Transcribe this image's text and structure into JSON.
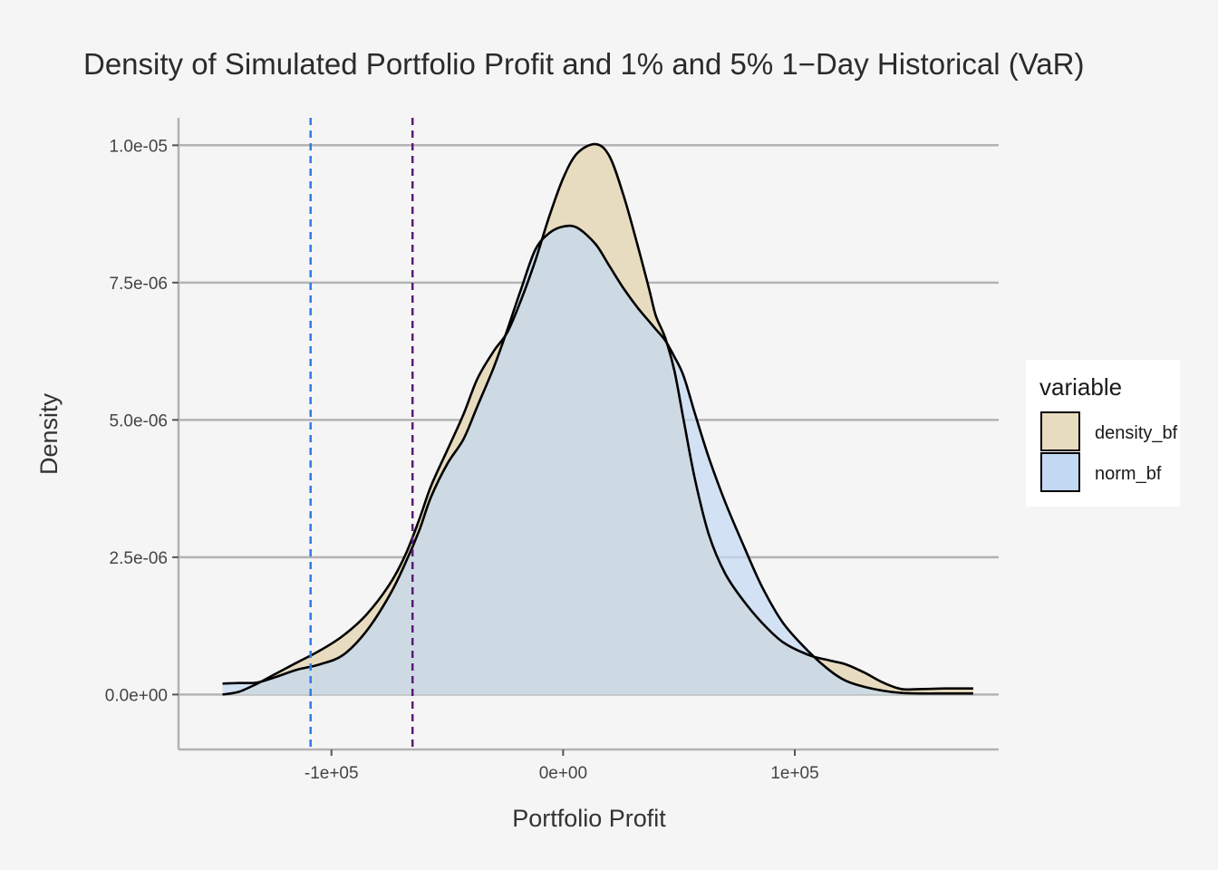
{
  "chart_data": {
    "type": "area",
    "title": "Density of Simulated Portfolio Profit and 1% and 5% 1−Day Historical (VaR)",
    "xlabel": "Portfolio Profit",
    "ylabel": "Density",
    "xlim": [
      -166000,
      188000
    ],
    "ylim": [
      -1e-06,
      1.05e-05
    ],
    "grid": "horizontal-major",
    "x_ticks": [
      {
        "value": -100000,
        "label": "-1e+05"
      },
      {
        "value": 0,
        "label": "0e+00"
      },
      {
        "value": 100000,
        "label": "1e+05"
      }
    ],
    "y_ticks": [
      {
        "value": 0,
        "label": "0.0e+00"
      },
      {
        "value": 2.5e-06,
        "label": "2.5e-06"
      },
      {
        "value": 5e-06,
        "label": "5.0e-06"
      },
      {
        "value": 7.5e-06,
        "label": "7.5e-06"
      },
      {
        "value": 1e-05,
        "label": "1.0e-05"
      }
    ],
    "series": [
      {
        "name": "density_bf",
        "fill": "#e8dcc0",
        "points": [
          [
            -147000,
            0.0
          ],
          [
            -140000,
            5e-08
          ],
          [
            -132000,
            2e-07
          ],
          [
            -124000,
            3.8e-07
          ],
          [
            -115000,
            5.8e-07
          ],
          [
            -105000,
            8e-07
          ],
          [
            -95000,
            1.07e-06
          ],
          [
            -85000,
            1.45e-06
          ],
          [
            -75000,
            2e-06
          ],
          [
            -68000,
            2.55e-06
          ],
          [
            -62000,
            3.2e-06
          ],
          [
            -57000,
            3.8e-06
          ],
          [
            -50000,
            4.45e-06
          ],
          [
            -43000,
            5.1e-06
          ],
          [
            -37000,
            5.75e-06
          ],
          [
            -30000,
            6.25e-06
          ],
          [
            -24000,
            6.6e-06
          ],
          [
            -18000,
            7.2e-06
          ],
          [
            -12000,
            7.9e-06
          ],
          [
            -6000,
            8.7e-06
          ],
          [
            0,
            9.4e-06
          ],
          [
            6000,
            9.85e-06
          ],
          [
            14000,
            1.002e-05
          ],
          [
            20000,
            9.8e-06
          ],
          [
            26000,
            9.1e-06
          ],
          [
            32000,
            8.2e-06
          ],
          [
            37000,
            7.4e-06
          ],
          [
            40000,
            6.9e-06
          ],
          [
            44000,
            6.5e-06
          ],
          [
            48000,
            5.9e-06
          ],
          [
            52000,
            5e-06
          ],
          [
            57000,
            3.9e-06
          ],
          [
            63000,
            2.9e-06
          ],
          [
            70000,
            2.2e-06
          ],
          [
            78000,
            1.7e-06
          ],
          [
            86000,
            1.3e-06
          ],
          [
            95000,
            9.5e-07
          ],
          [
            106000,
            7.2e-07
          ],
          [
            115000,
            6.2e-07
          ],
          [
            122000,
            5.5e-07
          ],
          [
            130000,
            4e-07
          ],
          [
            138000,
            2.2e-07
          ],
          [
            146000,
            1e-07
          ],
          [
            155000,
            1e-07
          ],
          [
            165000,
            1.1e-07
          ],
          [
            177000,
            1.1e-07
          ]
        ]
      },
      {
        "name": "norm_bf",
        "fill": "#c3d8f2",
        "points": [
          [
            -147000,
            2e-07
          ],
          [
            -140000,
            2.1e-07
          ],
          [
            -132000,
            2.2e-07
          ],
          [
            -124000,
            3.2e-07
          ],
          [
            -115000,
            4.5e-07
          ],
          [
            -105000,
            5.5e-07
          ],
          [
            -95000,
            7.2e-07
          ],
          [
            -85000,
            1.15e-06
          ],
          [
            -75000,
            1.8e-06
          ],
          [
            -68000,
            2.4e-06
          ],
          [
            -62000,
            3e-06
          ],
          [
            -57000,
            3.6e-06
          ],
          [
            -50000,
            4.2e-06
          ],
          [
            -43000,
            4.65e-06
          ],
          [
            -37000,
            5.25e-06
          ],
          [
            -30000,
            5.95e-06
          ],
          [
            -24000,
            6.65e-06
          ],
          [
            -18000,
            7.4e-06
          ],
          [
            -12000,
            8.1e-06
          ],
          [
            -6000,
            8.4e-06
          ],
          [
            0,
            8.52e-06
          ],
          [
            6000,
            8.5e-06
          ],
          [
            14000,
            8.2e-06
          ],
          [
            20000,
            7.8e-06
          ],
          [
            26000,
            7.4e-06
          ],
          [
            32000,
            7.05e-06
          ],
          [
            37000,
            6.8e-06
          ],
          [
            40000,
            6.65e-06
          ],
          [
            44000,
            6.45e-06
          ],
          [
            48000,
            6.15e-06
          ],
          [
            52000,
            5.8e-06
          ],
          [
            57000,
            5.1e-06
          ],
          [
            63000,
            4.3e-06
          ],
          [
            70000,
            3.5e-06
          ],
          [
            78000,
            2.7e-06
          ],
          [
            86000,
            1.95e-06
          ],
          [
            95000,
            1.3e-06
          ],
          [
            106000,
            7.8e-07
          ],
          [
            115000,
            4.4e-07
          ],
          [
            122000,
            2.5e-07
          ],
          [
            130000,
            1.4e-07
          ],
          [
            138000,
            7e-08
          ],
          [
            146000,
            3e-08
          ],
          [
            155000,
            2e-08
          ],
          [
            165000,
            2e-08
          ],
          [
            177000,
            2e-08
          ]
        ]
      }
    ],
    "vlines": [
      {
        "name": "var-1pct",
        "x": -109000,
        "color": "#2f7be8",
        "style": "dashed"
      },
      {
        "name": "var-5pct",
        "x": -65000,
        "color": "#5a1a78",
        "style": "dashed"
      }
    ],
    "legend": {
      "title": "variable",
      "position": "right",
      "items": [
        {
          "label": "density_bf",
          "fill": "#e8dcc0"
        },
        {
          "label": "norm_bf",
          "fill": "#c3d8f2"
        }
      ]
    }
  }
}
